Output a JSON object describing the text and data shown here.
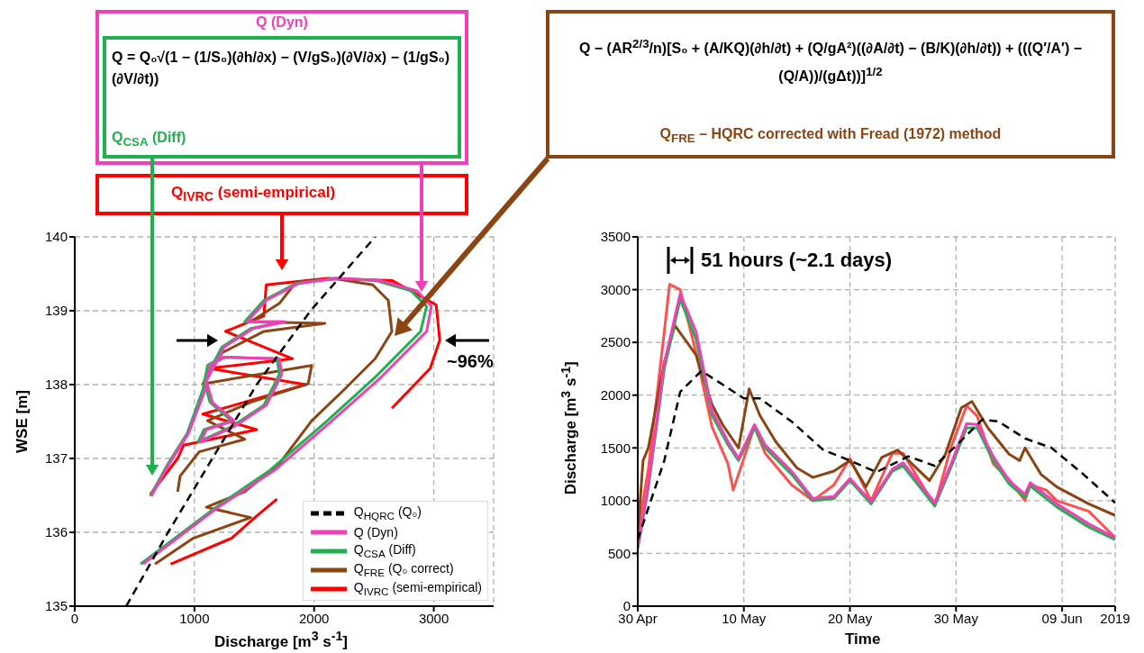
{
  "chart_data": [
    {
      "type": "line",
      "xlabel": "Discharge [m$^{3}$ s$^{-1}$]",
      "ylabel": "WSE [m]",
      "xlim": [
        0,
        3500
      ],
      "xticks": [
        0,
        1000,
        2000,
        3000
      ],
      "ylim": [
        135,
        140
      ],
      "yticks": [
        135,
        136,
        137,
        138,
        139,
        140
      ],
      "grid": true,
      "legend": "bottom right",
      "annotations": [
        "Q (Dyn)",
        "Q = Q₀√(1 − (1/S₀)(∂h/∂x) − (V/gS₀)(∂V/∂x) − (1/gS₀)(∂V/∂t))",
        "Q$_{CSA}$ (Diff)",
        "Q$_{IVRC}$ (semi-empirical)",
        "Q − (AR$^{2/3}$/n)[S₀ + (A/KQ)(∂h/∂t) + (Q/gA²)((∂A/∂t) − (B/K)(∂h/∂t)) + (((Q′/A′) − (Q/A))/(gΔt))]$^{1/2}$",
        "Q$_{FRE}$ – HQRC corrected with Fread (1972) method",
        "~96%"
      ],
      "series": [
        {
          "name": "Q$_{HQRC}$ (Q₀)",
          "color": "#000000",
          "line_style": "dashed",
          "x": [
            430,
            780,
            1150,
            1520,
            1970,
            2510
          ],
          "values": [
            135,
            136,
            137,
            138,
            139,
            140
          ]
        },
        {
          "name": "Q (Dyn)",
          "color": "#f040b8",
          "x": [
            640,
            790,
            950,
            1090,
            1130,
            1250,
            1710,
            1730,
            1600,
            1330,
            1050,
            1100,
            1330,
            1150,
            1100,
            1250,
            1490,
            1760,
            1440,
            1600,
            1870,
            2190,
            2550,
            2860,
            2980,
            2940,
            2560,
            2150,
            1670,
            1200,
            570
          ],
          "values": [
            136.49,
            136.93,
            137.34,
            137.93,
            138.26,
            138.37,
            138.35,
            138.14,
            137.72,
            137.43,
            137.22,
            137.39,
            137.51,
            137.76,
            138.05,
            138.51,
            138.76,
            138.85,
            138.85,
            139.14,
            139.37,
            139.44,
            139.41,
            139.27,
            139.06,
            138.72,
            138.1,
            137.51,
            136.84,
            136.34,
            135.57
          ]
        },
        {
          "name": "Q$_{CSA}$ (Diff)",
          "color": "#20b050",
          "x": [
            630,
            780,
            940,
            1070,
            1110,
            1230,
            1690,
            1710,
            1580,
            1310,
            1030,
            1080,
            1310,
            1130,
            1080,
            1230,
            1470,
            1740,
            1420,
            1580,
            1850,
            2170,
            2510,
            2810,
            2940,
            2890,
            2510,
            2110,
            1630,
            1180,
            550
          ],
          "values": [
            136.49,
            136.93,
            137.34,
            137.93,
            138.26,
            138.37,
            138.35,
            138.14,
            137.72,
            137.43,
            137.22,
            137.39,
            137.51,
            137.76,
            138.05,
            138.51,
            138.76,
            138.85,
            138.85,
            139.14,
            139.37,
            139.44,
            139.41,
            139.27,
            139.06,
            138.72,
            138.1,
            137.51,
            136.84,
            136.34,
            135.57
          ]
        },
        {
          "name": "Q$_{FRE}$ (Q₀ correct)",
          "color": "#8b4513",
          "x": [
            670,
            990,
            1470,
            1100,
            1420,
            1710,
            1980,
            2250,
            2510,
            2650,
            2620,
            2490,
            2190,
            1850,
            1710,
            1470,
            2090,
            1580,
            1230,
            1070,
            1980,
            1950,
            1470,
            1110,
            1420,
            1040,
            880,
            860
          ],
          "values": [
            135.57,
            135.92,
            136.2,
            136.34,
            136.55,
            136.93,
            137.51,
            137.93,
            138.35,
            138.72,
            139.14,
            139.35,
            139.43,
            139.39,
            139.1,
            138.85,
            138.83,
            138.72,
            138.43,
            138.01,
            138.26,
            138.01,
            137.76,
            137.51,
            137.26,
            137.09,
            136.76,
            136.55
          ]
        },
        {
          "name": "Q$_{IVRC}$ (semi-empirical)",
          "color": "#ff0000",
          "x": [
            630,
            860,
            910,
            1520,
            1070,
            1930,
            1120,
            1820,
            1260,
            1580,
            1600,
            2110,
            2650,
            3020,
            3050,
            2970,
            2650
          ],
          "values": [
            136.51,
            137.0,
            137.18,
            137.39,
            137.6,
            138.0,
            138.22,
            138.35,
            138.72,
            138.93,
            139.35,
            139.44,
            139.41,
            139.08,
            138.6,
            138.22,
            137.68
          ]
        },
        {
          "color": "#ff0000",
          "x": [
            800,
            1310,
            1520,
            1690
          ],
          "values": [
            135.57,
            135.92,
            136.22,
            136.45
          ]
        }
      ]
    },
    {
      "type": "line",
      "xlabel": "Time",
      "ylabel": "Discharge [m$^{3}$ s$^{-1}$]",
      "xlim": [
        "2019-04-30",
        "2019-06-14"
      ],
      "xticks": [
        {
          "value": "2019-04-30",
          "label": "30 Apr"
        },
        {
          "value": "2019-05-10",
          "label": "10 May"
        },
        {
          "value": "2019-05-20",
          "label": "20 May"
        },
        {
          "value": "2019-05-30",
          "label": "30 May"
        },
        {
          "value": "2019-06-09",
          "label": "09 Jun"
        },
        {
          "value": "2019-06-14",
          "label": "2019"
        }
      ],
      "ylim": [
        0,
        3500
      ],
      "yticks": [
        0,
        500,
        1000,
        1500,
        2000,
        2500,
        3000,
        3500
      ],
      "grid": true,
      "annotations": [
        "51 hours (~2.1 days)"
      ],
      "series": [
        {
          "color": "#000000",
          "line_style": "dashed",
          "x": [
            "2019-04-30T00:00",
            "2019-05-02T12:00",
            "2019-05-04T00:00",
            "2019-05-06T00:00",
            "2019-05-10T00:00",
            "2019-05-11T12:00",
            "2019-05-14T12:00",
            "2019-05-17T12:00",
            "2019-05-20T00:00",
            "2019-05-22T12:00",
            "2019-05-25T12:00",
            "2019-05-28T00:00",
            "2019-05-30T00:00",
            "2019-06-01T12:00",
            "2019-06-03T00:00",
            "2019-06-05T12:00",
            "2019-06-08T00:00",
            "2019-06-11T00:00",
            "2019-06-14T00:00"
          ],
          "values": [
            630,
            1380,
            2030,
            2230,
            1970,
            1970,
            1750,
            1480,
            1380,
            1270,
            1420,
            1330,
            1520,
            1770,
            1750,
            1590,
            1500,
            1250,
            980
          ]
        },
        {
          "color": "#f040b8",
          "x": [
            "2019-04-30T00:00",
            "2019-05-01T00:00",
            "2019-05-02T12:00",
            "2019-05-04T00:00",
            "2019-05-05T12:00",
            "2019-05-07T00:00",
            "2019-05-08T12:00",
            "2019-05-09T12:00",
            "2019-05-11T00:00",
            "2019-05-12T00:00",
            "2019-05-14T12:00",
            "2019-05-16T12:00",
            "2019-05-18T12:00",
            "2019-05-20T00:00",
            "2019-05-22T00:00",
            "2019-05-24T00:00",
            "2019-05-25T00:00",
            "2019-05-28T00:00",
            "2019-05-29T12:00",
            "2019-05-31T00:00",
            "2019-06-01T00:00",
            "2019-06-02T12:00",
            "2019-06-04T00:00",
            "2019-06-05T12:00",
            "2019-06-06T00:00",
            "2019-06-08T12:00",
            "2019-06-11T12:00",
            "2019-06-14T00:00"
          ],
          "values": [
            550,
            1150,
            2300,
            2960,
            2600,
            1850,
            1560,
            1400,
            1720,
            1530,
            1280,
            1020,
            1040,
            1210,
            990,
            1300,
            1360,
            980,
            1340,
            1730,
            1720,
            1420,
            1190,
            1060,
            1170,
            970,
            780,
            650
          ]
        },
        {
          "color": "#20b050",
          "x": [
            "2019-04-30T00:00",
            "2019-05-01T00:00",
            "2019-05-02T12:00",
            "2019-05-04T00:00",
            "2019-05-05T12:00",
            "2019-05-07T00:00",
            "2019-05-08T12:00",
            "2019-05-09T12:00",
            "2019-05-11T00:00",
            "2019-05-12T00:00",
            "2019-05-14T12:00",
            "2019-05-16T12:00",
            "2019-05-18T12:00",
            "2019-05-20T00:00",
            "2019-05-22T00:00",
            "2019-05-24T00:00",
            "2019-05-25T00:00",
            "2019-05-28T00:00",
            "2019-05-29T12:00",
            "2019-05-31T00:00",
            "2019-06-01T00:00",
            "2019-06-02T12:00",
            "2019-06-04T00:00",
            "2019-06-05T12:00",
            "2019-06-06T00:00",
            "2019-06-08T12:00",
            "2019-06-11T12:00",
            "2019-06-14T00:00"
          ],
          "values": [
            550,
            1130,
            2250,
            2910,
            2530,
            1810,
            1530,
            1380,
            1690,
            1500,
            1250,
            1000,
            1020,
            1190,
            970,
            1280,
            1330,
            950,
            1310,
            1690,
            1690,
            1380,
            1160,
            1030,
            1140,
            940,
            750,
            630
          ]
        },
        {
          "color": "#8b4513",
          "x": [
            "2019-04-30T00:00",
            "2019-04-30T12:00",
            "2019-05-01T00:00",
            "2019-05-02T12:00",
            "2019-05-03T12:00",
            "2019-05-05T12:00",
            "2019-05-07T00:00",
            "2019-05-08T00:00",
            "2019-05-09T12:00",
            "2019-05-10T12:00",
            "2019-05-11T12:00",
            "2019-05-13T00:00",
            "2019-05-15T00:00",
            "2019-05-16T12:00",
            "2019-05-18T12:00",
            "2019-05-20T00:00",
            "2019-05-21T12:00",
            "2019-05-23T00:00",
            "2019-05-24T12:00",
            "2019-05-27T12:00",
            "2019-05-29T00:00",
            "2019-05-30T12:00",
            "2019-05-31T12:00",
            "2019-06-02T00:00",
            "2019-06-04T00:00",
            "2019-06-05T00:00",
            "2019-06-05T12:00",
            "2019-06-07T00:00",
            "2019-06-08T12:00",
            "2019-06-11T12:00",
            "2019-06-14T00:00"
          ],
          "values": [
            690,
            1380,
            1500,
            2310,
            2660,
            2380,
            1910,
            1720,
            1500,
            2060,
            1810,
            1560,
            1310,
            1220,
            1280,
            1380,
            1130,
            1410,
            1480,
            1190,
            1440,
            1880,
            1940,
            1690,
            1440,
            1380,
            1500,
            1250,
            1130,
            970,
            860
          ]
        },
        {
          "color": "#ff5050",
          "x": [
            "2019-04-30T00:00",
            "2019-05-01T00:00",
            "2019-05-02T12:00",
            "2019-05-03T00:00",
            "2019-05-04T00:00",
            "2019-05-05T12:00",
            "2019-05-07T00:00",
            "2019-05-08T12:00",
            "2019-05-09T00:00",
            "2019-05-11T00:00",
            "2019-05-12T00:00",
            "2019-05-14T12:00",
            "2019-05-16T12:00",
            "2019-05-18T12:00",
            "2019-05-20T00:00",
            "2019-05-22T00:00",
            "2019-05-24T00:00",
            "2019-05-25T00:00",
            "2019-05-28T00:00",
            "2019-05-29T12:00",
            "2019-05-31T00:00",
            "2019-06-01T00:00",
            "2019-06-02T12:00",
            "2019-06-04T00:00",
            "2019-06-05T12:00",
            "2019-06-06T00:00",
            "2019-06-07T12:00",
            "2019-06-08T12:00",
            "2019-06-11T12:00",
            "2019-06-12T12:00",
            "2019-06-14T00:00"
          ],
          "values": [
            700,
            1300,
            2600,
            3050,
            3000,
            2400,
            1700,
            1350,
            1100,
            1700,
            1450,
            1150,
            1000,
            1150,
            1400,
            1000,
            1450,
            1450,
            950,
            1500,
            1900,
            1800,
            1350,
            1200,
            1000,
            1150,
            1100,
            1000,
            900,
            800,
            650
          ]
        }
      ]
    }
  ]
}
